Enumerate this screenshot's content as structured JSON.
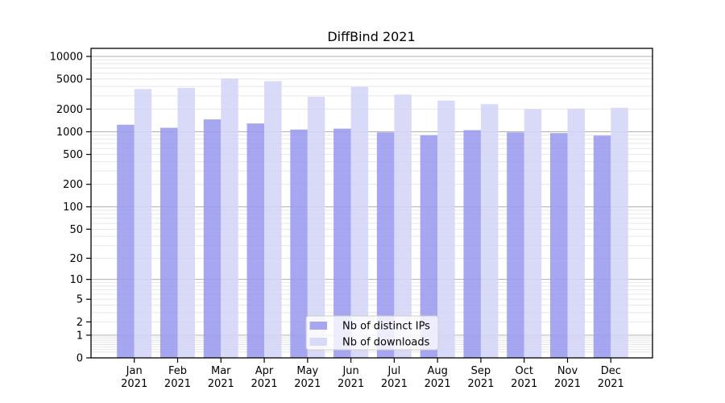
{
  "chart_data": {
    "type": "bar",
    "title": "DiffBind 2021",
    "categories": [
      "Jan",
      "Feb",
      "Mar",
      "Apr",
      "May",
      "Jun",
      "Jul",
      "Aug",
      "Sep",
      "Oct",
      "Nov",
      "Dec"
    ],
    "category_year": "2021",
    "series": [
      {
        "name": "Nb of distinct IPs",
        "color": "rgba(154,154,239,0.88)",
        "legend_color": "#a6a6f1",
        "values": [
          1240,
          1130,
          1460,
          1290,
          1070,
          1100,
          980,
          900,
          1050,
          980,
          960,
          890
        ]
      },
      {
        "name": "Nb of downloads",
        "color": "rgba(212,212,247,0.88)",
        "legend_color": "#d9d9f8",
        "values": [
          3700,
          3830,
          5100,
          4700,
          2920,
          3950,
          3120,
          2600,
          2330,
          2000,
          2030,
          2080
        ]
      }
    ],
    "y_scale": "log1p",
    "y_ticks": [
      0,
      1,
      2,
      5,
      10,
      20,
      50,
      100,
      200,
      500,
      1000,
      2000,
      5000,
      10000
    ],
    "ylim": [
      0,
      12800
    ],
    "grid": {
      "major_at": [
        1,
        10,
        100,
        1000,
        10000
      ],
      "major_color": "#b0b0b0",
      "minor_color": "#e7e7e7"
    },
    "axis_color": "#000000",
    "legend_position": "inside-bottom-center"
  }
}
